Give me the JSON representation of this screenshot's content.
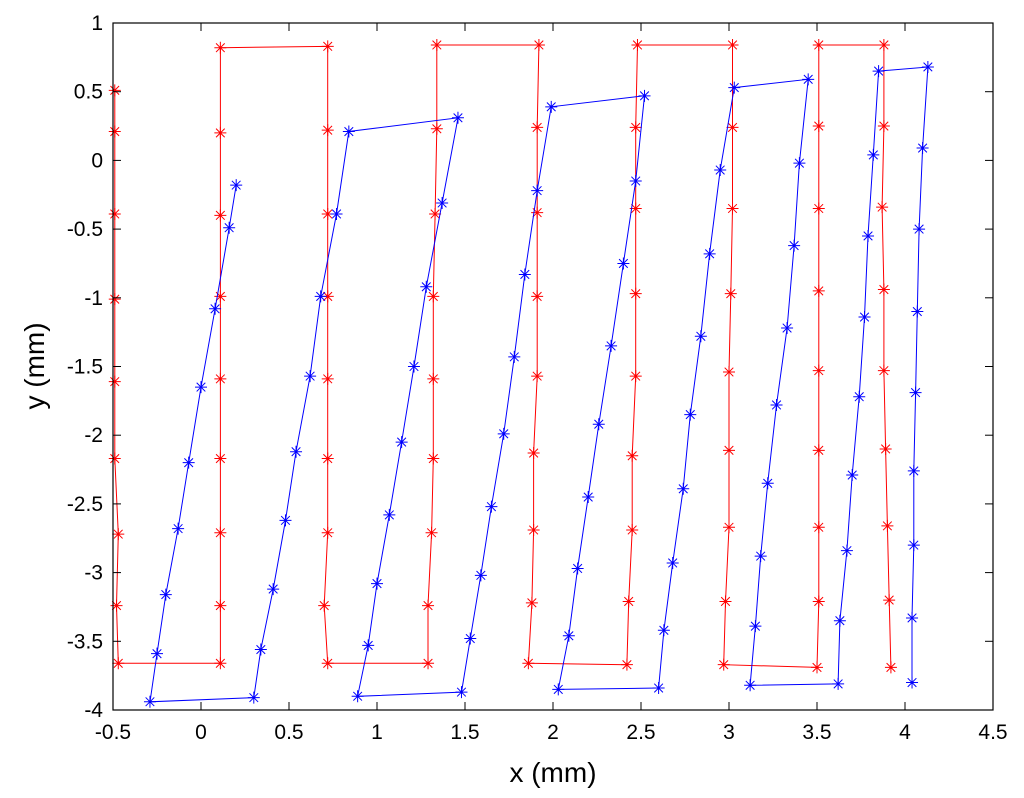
{
  "chart_data": {
    "type": "scatter",
    "xlabel": "x (mm)",
    "ylabel": "y (mm)",
    "xlim": [
      -0.5,
      4.5
    ],
    "ylim": [
      -4,
      1
    ],
    "grid": false,
    "legend": "none",
    "xticks": [
      -0.5,
      0,
      0.5,
      1,
      1.5,
      2,
      2.5,
      3,
      3.5,
      4,
      4.5
    ],
    "xtick_labels": [
      "-0.5",
      "0",
      "0.5",
      "1",
      "1.5",
      "2",
      "2.5",
      "3",
      "3.5",
      "4",
      "4.5"
    ],
    "yticks": [
      1,
      0.5,
      0,
      -0.5,
      -1,
      -1.5,
      -2,
      -2.5,
      -3,
      -3.5,
      -4
    ],
    "ytick_labels": [
      "1",
      "0.5",
      "0",
      "-0.5",
      "-1",
      "-1.5",
      "-2",
      "-2.5",
      "-3",
      "-3.5",
      "-4"
    ],
    "series": [
      {
        "color": "#ff0000",
        "marker": "asterisk",
        "points": [
          [
            -0.49,
            0.51
          ],
          [
            -0.49,
            0.21
          ],
          [
            -0.49,
            -0.39
          ],
          [
            -0.49,
            -1.01
          ],
          [
            -0.49,
            -1.61
          ],
          [
            -0.49,
            -2.17
          ],
          [
            -0.47,
            -2.72
          ],
          [
            -0.48,
            -3.24
          ],
          [
            -0.47,
            -3.66
          ],
          [
            0.11,
            -3.66
          ],
          [
            0.11,
            -3.24
          ],
          [
            0.11,
            -2.71
          ],
          [
            0.11,
            -2.17
          ],
          [
            0.11,
            -1.59
          ],
          [
            0.11,
            -0.99
          ],
          [
            0.11,
            -0.4
          ],
          [
            0.11,
            0.2
          ],
          [
            0.11,
            0.82
          ],
          [
            0.72,
            0.83
          ],
          [
            0.72,
            0.22
          ],
          [
            0.72,
            -0.39
          ],
          [
            0.72,
            -0.99
          ],
          [
            0.72,
            -1.59
          ],
          [
            0.72,
            -2.17
          ],
          [
            0.72,
            -2.71
          ],
          [
            0.7,
            -3.24
          ],
          [
            0.72,
            -3.66
          ],
          [
            1.29,
            -3.66
          ],
          [
            1.29,
            -3.24
          ],
          [
            1.31,
            -2.71
          ],
          [
            1.32,
            -2.17
          ],
          [
            1.32,
            -1.59
          ],
          [
            1.32,
            -0.99
          ],
          [
            1.33,
            -0.39
          ],
          [
            1.34,
            0.23
          ],
          [
            1.34,
            0.84
          ],
          [
            1.92,
            0.84
          ],
          [
            1.91,
            0.24
          ],
          [
            1.91,
            -0.38
          ],
          [
            1.91,
            -0.99
          ],
          [
            1.91,
            -1.57
          ],
          [
            1.89,
            -2.13
          ],
          [
            1.89,
            -2.69
          ],
          [
            1.88,
            -3.22
          ],
          [
            1.86,
            -3.66
          ],
          [
            2.42,
            -3.67
          ],
          [
            2.43,
            -3.21
          ],
          [
            2.45,
            -2.69
          ],
          [
            2.45,
            -2.15
          ],
          [
            2.47,
            -1.57
          ],
          [
            2.47,
            -0.97
          ],
          [
            2.47,
            -0.35
          ],
          [
            2.47,
            0.24
          ],
          [
            2.48,
            0.84
          ],
          [
            3.02,
            0.84
          ],
          [
            3.02,
            0.24
          ],
          [
            3.02,
            -0.35
          ],
          [
            3.01,
            -0.97
          ],
          [
            3.0,
            -1.54
          ],
          [
            3.0,
            -2.11
          ],
          [
            3.0,
            -2.67
          ],
          [
            2.98,
            -3.21
          ],
          [
            2.97,
            -3.67
          ],
          [
            3.5,
            -3.69
          ],
          [
            3.51,
            -3.21
          ],
          [
            3.51,
            -2.67
          ],
          [
            3.51,
            -2.11
          ],
          [
            3.51,
            -1.53
          ],
          [
            3.51,
            -0.95
          ],
          [
            3.51,
            -0.35
          ],
          [
            3.51,
            0.25
          ],
          [
            3.51,
            0.84
          ],
          [
            3.88,
            0.84
          ],
          [
            3.88,
            0.25
          ],
          [
            3.87,
            -0.34
          ],
          [
            3.88,
            -0.94
          ],
          [
            3.88,
            -1.53
          ],
          [
            3.89,
            -2.1
          ],
          [
            3.9,
            -2.66
          ],
          [
            3.91,
            -3.2
          ],
          [
            3.92,
            -3.69
          ]
        ]
      },
      {
        "color": "#0000ff",
        "marker": "asterisk",
        "points": [
          [
            0.2,
            -0.18
          ],
          [
            0.16,
            -0.49
          ],
          [
            0.08,
            -1.08
          ],
          [
            0.0,
            -1.65
          ],
          [
            -0.07,
            -2.2
          ],
          [
            -0.13,
            -2.68
          ],
          [
            -0.2,
            -3.16
          ],
          [
            -0.25,
            -3.59
          ],
          [
            -0.29,
            -3.94
          ],
          [
            0.3,
            -3.91
          ],
          [
            0.34,
            -3.56
          ],
          [
            0.41,
            -3.12
          ],
          [
            0.48,
            -2.62
          ],
          [
            0.54,
            -2.12
          ],
          [
            0.62,
            -1.57
          ],
          [
            0.68,
            -0.99
          ],
          [
            0.77,
            -0.39
          ],
          [
            0.84,
            0.21
          ],
          [
            1.46,
            0.31
          ],
          [
            1.37,
            -0.31
          ],
          [
            1.28,
            -0.92
          ],
          [
            1.21,
            -1.5
          ],
          [
            1.14,
            -2.05
          ],
          [
            1.07,
            -2.58
          ],
          [
            1.0,
            -3.08
          ],
          [
            0.95,
            -3.53
          ],
          [
            0.89,
            -3.9
          ],
          [
            1.48,
            -3.87
          ],
          [
            1.53,
            -3.48
          ],
          [
            1.59,
            -3.02
          ],
          [
            1.65,
            -2.52
          ],
          [
            1.72,
            -1.99
          ],
          [
            1.78,
            -1.43
          ],
          [
            1.84,
            -0.83
          ],
          [
            1.91,
            -0.22
          ],
          [
            1.99,
            0.39
          ],
          [
            2.52,
            0.47
          ],
          [
            2.47,
            -0.15
          ],
          [
            2.4,
            -0.75
          ],
          [
            2.33,
            -1.35
          ],
          [
            2.26,
            -1.92
          ],
          [
            2.2,
            -2.45
          ],
          [
            2.14,
            -2.97
          ],
          [
            2.09,
            -3.46
          ],
          [
            2.03,
            -3.85
          ],
          [
            2.6,
            -3.84
          ],
          [
            2.63,
            -3.42
          ],
          [
            2.68,
            -2.93
          ],
          [
            2.74,
            -2.39
          ],
          [
            2.78,
            -1.85
          ],
          [
            2.84,
            -1.28
          ],
          [
            2.89,
            -0.68
          ],
          [
            2.95,
            -0.07
          ],
          [
            3.03,
            0.53
          ],
          [
            3.45,
            0.59
          ],
          [
            3.4,
            -0.02
          ],
          [
            3.37,
            -0.62
          ],
          [
            3.33,
            -1.22
          ],
          [
            3.27,
            -1.78
          ],
          [
            3.22,
            -2.35
          ],
          [
            3.18,
            -2.88
          ],
          [
            3.15,
            -3.39
          ],
          [
            3.12,
            -3.82
          ],
          [
            3.62,
            -3.81
          ],
          [
            3.63,
            -3.35
          ],
          [
            3.67,
            -2.84
          ],
          [
            3.7,
            -2.29
          ],
          [
            3.74,
            -1.72
          ],
          [
            3.77,
            -1.14
          ],
          [
            3.79,
            -0.55
          ],
          [
            3.82,
            0.04
          ],
          [
            3.85,
            0.65
          ],
          [
            4.13,
            0.68
          ],
          [
            4.1,
            0.09
          ],
          [
            4.08,
            -0.5
          ],
          [
            4.07,
            -1.1
          ],
          [
            4.06,
            -1.69
          ],
          [
            4.05,
            -2.26
          ],
          [
            4.05,
            -2.8
          ],
          [
            4.04,
            -3.33
          ],
          [
            4.04,
            -3.8
          ]
        ]
      }
    ]
  }
}
